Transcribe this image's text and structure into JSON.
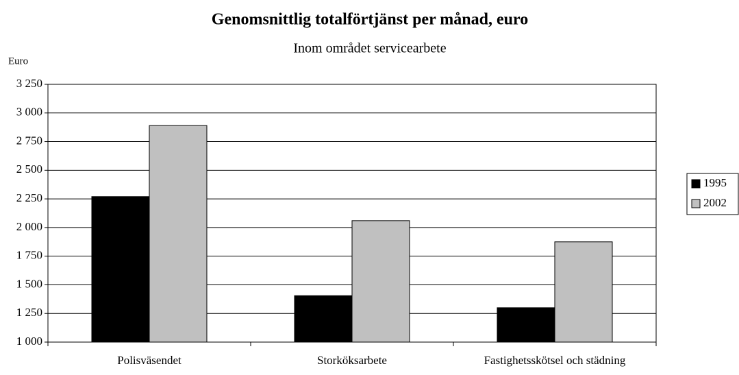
{
  "chart_data": {
    "type": "bar",
    "title": "Genomsnittlig totalförtjänst per månad, euro",
    "subtitle": "Inom området servicearbete",
    "y_label": "Euro",
    "categories": [
      "Polisväsendet",
      "Storköksarbete",
      "Fastighetsskötsel och städning"
    ],
    "series": [
      {
        "name": "1995",
        "color": "#000000",
        "values": [
          2270,
          1405,
          1300
        ]
      },
      {
        "name": "2002",
        "color": "#c0c0c0",
        "values": [
          2890,
          2060,
          1875
        ]
      }
    ],
    "ylim": [
      1000,
      3250
    ],
    "yticks": [
      {
        "value": 1000,
        "label": "1 000"
      },
      {
        "value": 1250,
        "label": "1 250"
      },
      {
        "value": 1500,
        "label": "1 500"
      },
      {
        "value": 1750,
        "label": "1 750"
      },
      {
        "value": 2000,
        "label": "2 000"
      },
      {
        "value": 2250,
        "label": "2 250"
      },
      {
        "value": 2500,
        "label": "2 500"
      },
      {
        "value": 2750,
        "label": "2 750"
      },
      {
        "value": 3000,
        "label": "3 000"
      },
      {
        "value": 3250,
        "label": "3 250"
      }
    ],
    "grid": true,
    "legend": "right"
  }
}
